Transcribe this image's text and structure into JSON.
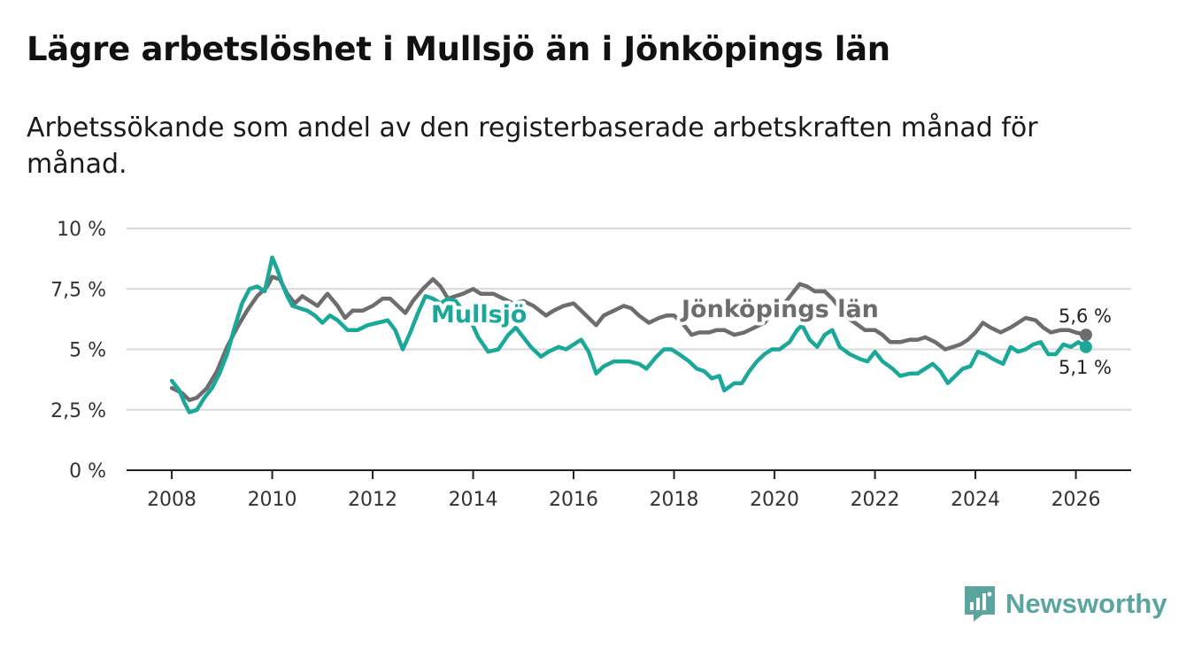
{
  "header": {
    "title": "Lägre arbetslöshet i Mullsjö än i Jönköpings län",
    "subtitle": "Arbetssökande som andel av den registerbaserade arbetskraften månad för månad."
  },
  "brand": {
    "name": "Newsworthy"
  },
  "colors": {
    "mullsjo": "#1aa89a",
    "lan": "#6d6d70",
    "grid": "#d9d9d9",
    "axis": "#222222",
    "brand": "#5aa5a0"
  },
  "chart_data": {
    "type": "line",
    "title": "Lägre arbetslöshet i Mullsjö än i Jönköpings län",
    "subtitle": "Arbetssökande som andel av den registerbaserade arbetskraften månad för månad.",
    "xlabel": "",
    "ylabel": "",
    "xlim": [
      2007.1,
      2027.1
    ],
    "ylim": [
      0,
      10
    ],
    "grid": true,
    "x_ticks": [
      {
        "value": 2008,
        "label": "2008"
      },
      {
        "value": 2010,
        "label": "2010"
      },
      {
        "value": 2012,
        "label": "2012"
      },
      {
        "value": 2014,
        "label": "2014"
      },
      {
        "value": 2016,
        "label": "2016"
      },
      {
        "value": 2018,
        "label": "2018"
      },
      {
        "value": 2020,
        "label": "2020"
      },
      {
        "value": 2022,
        "label": "2022"
      },
      {
        "value": 2024,
        "label": "2024"
      },
      {
        "value": 2026,
        "label": "2026"
      }
    ],
    "y_ticks": [
      {
        "value": 0,
        "label": "0 %"
      },
      {
        "value": 2.5,
        "label": "2,5 %"
      },
      {
        "value": 5,
        "label": "5 %"
      },
      {
        "value": 7.5,
        "label": "7,5 %"
      },
      {
        "value": 10,
        "label": "10 %"
      }
    ],
    "series": [
      {
        "name": "Jönköpings län",
        "end_label": "5,6 %",
        "points": [
          [
            2008.0,
            3.4
          ],
          [
            2008.2,
            3.2
          ],
          [
            2008.35,
            2.9
          ],
          [
            2008.5,
            3.0
          ],
          [
            2008.7,
            3.4
          ],
          [
            2008.9,
            4.1
          ],
          [
            2009.1,
            5.1
          ],
          [
            2009.3,
            5.9
          ],
          [
            2009.5,
            6.6
          ],
          [
            2009.7,
            7.2
          ],
          [
            2009.9,
            7.6
          ],
          [
            2010.0,
            8.0
          ],
          [
            2010.15,
            7.9
          ],
          [
            2010.3,
            7.3
          ],
          [
            2010.45,
            6.9
          ],
          [
            2010.6,
            7.2
          ],
          [
            2010.75,
            7.0
          ],
          [
            2010.9,
            6.8
          ],
          [
            2011.1,
            7.3
          ],
          [
            2011.3,
            6.8
          ],
          [
            2011.45,
            6.3
          ],
          [
            2011.6,
            6.6
          ],
          [
            2011.8,
            6.6
          ],
          [
            2012.0,
            6.8
          ],
          [
            2012.2,
            7.1
          ],
          [
            2012.35,
            7.1
          ],
          [
            2012.5,
            6.8
          ],
          [
            2012.65,
            6.5
          ],
          [
            2012.8,
            7.0
          ],
          [
            2013.0,
            7.5
          ],
          [
            2013.2,
            7.9
          ],
          [
            2013.35,
            7.6
          ],
          [
            2013.5,
            7.1
          ],
          [
            2013.65,
            7.2
          ],
          [
            2013.8,
            7.3
          ],
          [
            2014.0,
            7.5
          ],
          [
            2014.15,
            7.3
          ],
          [
            2014.4,
            7.3
          ],
          [
            2014.6,
            7.1
          ],
          [
            2014.8,
            6.9
          ],
          [
            2015.0,
            7.0
          ],
          [
            2015.2,
            6.8
          ],
          [
            2015.45,
            6.4
          ],
          [
            2015.6,
            6.6
          ],
          [
            2015.8,
            6.8
          ],
          [
            2016.0,
            6.9
          ],
          [
            2016.15,
            6.6
          ],
          [
            2016.3,
            6.3
          ],
          [
            2016.45,
            6.0
          ],
          [
            2016.6,
            6.4
          ],
          [
            2016.8,
            6.6
          ],
          [
            2017.0,
            6.8
          ],
          [
            2017.15,
            6.7
          ],
          [
            2017.3,
            6.4
          ],
          [
            2017.5,
            6.1
          ],
          [
            2017.7,
            6.3
          ],
          [
            2017.85,
            6.4
          ],
          [
            2018.0,
            6.4
          ],
          [
            2018.2,
            6.0
          ],
          [
            2018.35,
            5.6
          ],
          [
            2018.5,
            5.7
          ],
          [
            2018.7,
            5.7
          ],
          [
            2018.85,
            5.8
          ],
          [
            2019.0,
            5.8
          ],
          [
            2019.2,
            5.6
          ],
          [
            2019.4,
            5.7
          ],
          [
            2019.6,
            5.9
          ],
          [
            2019.8,
            6.1
          ],
          [
            2020.0,
            6.6
          ],
          [
            2020.2,
            6.9
          ],
          [
            2020.35,
            7.3
          ],
          [
            2020.5,
            7.7
          ],
          [
            2020.65,
            7.6
          ],
          [
            2020.8,
            7.4
          ],
          [
            2021.0,
            7.4
          ],
          [
            2021.15,
            7.1
          ],
          [
            2021.3,
            6.7
          ],
          [
            2021.45,
            6.3
          ],
          [
            2021.6,
            6.1
          ],
          [
            2021.8,
            5.8
          ],
          [
            2022.0,
            5.8
          ],
          [
            2022.15,
            5.6
          ],
          [
            2022.3,
            5.3
          ],
          [
            2022.5,
            5.3
          ],
          [
            2022.7,
            5.4
          ],
          [
            2022.85,
            5.4
          ],
          [
            2023.0,
            5.5
          ],
          [
            2023.2,
            5.3
          ],
          [
            2023.4,
            5.0
          ],
          [
            2023.55,
            5.1
          ],
          [
            2023.7,
            5.2
          ],
          [
            2023.85,
            5.4
          ],
          [
            2024.0,
            5.7
          ],
          [
            2024.15,
            6.1
          ],
          [
            2024.3,
            5.9
          ],
          [
            2024.5,
            5.7
          ],
          [
            2024.7,
            5.9
          ],
          [
            2024.85,
            6.1
          ],
          [
            2025.0,
            6.3
          ],
          [
            2025.2,
            6.2
          ],
          [
            2025.35,
            5.9
          ],
          [
            2025.5,
            5.7
          ],
          [
            2025.7,
            5.8
          ],
          [
            2025.85,
            5.8
          ],
          [
            2026.0,
            5.7
          ],
          [
            2026.2,
            5.6
          ]
        ]
      },
      {
        "name": "Mullsjö",
        "end_label": "5,1 %",
        "points": [
          [
            2008.0,
            3.7
          ],
          [
            2008.15,
            3.3
          ],
          [
            2008.25,
            2.8
          ],
          [
            2008.35,
            2.4
          ],
          [
            2008.5,
            2.5
          ],
          [
            2008.65,
            3.0
          ],
          [
            2008.8,
            3.4
          ],
          [
            2008.95,
            4.0
          ],
          [
            2009.1,
            4.8
          ],
          [
            2009.25,
            5.9
          ],
          [
            2009.4,
            6.9
          ],
          [
            2009.55,
            7.5
          ],
          [
            2009.7,
            7.6
          ],
          [
            2009.85,
            7.4
          ],
          [
            2010.0,
            8.8
          ],
          [
            2010.1,
            8.3
          ],
          [
            2010.2,
            7.7
          ],
          [
            2010.3,
            7.2
          ],
          [
            2010.4,
            6.8
          ],
          [
            2010.55,
            6.7
          ],
          [
            2010.7,
            6.6
          ],
          [
            2010.85,
            6.4
          ],
          [
            2011.0,
            6.1
          ],
          [
            2011.15,
            6.4
          ],
          [
            2011.3,
            6.2
          ],
          [
            2011.5,
            5.8
          ],
          [
            2011.7,
            5.8
          ],
          [
            2011.9,
            6.0
          ],
          [
            2012.1,
            6.1
          ],
          [
            2012.3,
            6.2
          ],
          [
            2012.45,
            5.8
          ],
          [
            2012.6,
            5.0
          ],
          [
            2012.75,
            5.7
          ],
          [
            2012.9,
            6.5
          ],
          [
            2013.05,
            7.2
          ],
          [
            2013.2,
            7.1
          ],
          [
            2013.35,
            6.9
          ],
          [
            2013.5,
            7.1
          ],
          [
            2013.65,
            7.0
          ],
          [
            2013.8,
            6.6
          ],
          [
            2013.95,
            6.2
          ],
          [
            2014.1,
            5.5
          ],
          [
            2014.3,
            4.9
          ],
          [
            2014.5,
            5.0
          ],
          [
            2014.7,
            5.6
          ],
          [
            2014.85,
            5.9
          ],
          [
            2015.0,
            5.5
          ],
          [
            2015.15,
            5.1
          ],
          [
            2015.35,
            4.7
          ],
          [
            2015.5,
            4.9
          ],
          [
            2015.7,
            5.1
          ],
          [
            2015.85,
            5.0
          ],
          [
            2016.0,
            5.2
          ],
          [
            2016.15,
            5.4
          ],
          [
            2016.3,
            4.9
          ],
          [
            2016.45,
            4.0
          ],
          [
            2016.6,
            4.3
          ],
          [
            2016.8,
            4.5
          ],
          [
            2016.95,
            4.5
          ],
          [
            2017.1,
            4.5
          ],
          [
            2017.3,
            4.4
          ],
          [
            2017.45,
            4.2
          ],
          [
            2017.65,
            4.7
          ],
          [
            2017.8,
            5.0
          ],
          [
            2017.95,
            5.0
          ],
          [
            2018.1,
            4.8
          ],
          [
            2018.3,
            4.5
          ],
          [
            2018.45,
            4.2
          ],
          [
            2018.6,
            4.1
          ],
          [
            2018.75,
            3.8
          ],
          [
            2018.9,
            3.9
          ],
          [
            2019.0,
            3.3
          ],
          [
            2019.2,
            3.6
          ],
          [
            2019.35,
            3.6
          ],
          [
            2019.5,
            4.1
          ],
          [
            2019.65,
            4.5
          ],
          [
            2019.8,
            4.8
          ],
          [
            2019.95,
            5.0
          ],
          [
            2020.1,
            5.0
          ],
          [
            2020.3,
            5.3
          ],
          [
            2020.45,
            5.8
          ],
          [
            2020.55,
            6.0
          ],
          [
            2020.7,
            5.4
          ],
          [
            2020.85,
            5.1
          ],
          [
            2021.0,
            5.6
          ],
          [
            2021.15,
            5.8
          ],
          [
            2021.3,
            5.1
          ],
          [
            2021.5,
            4.8
          ],
          [
            2021.7,
            4.6
          ],
          [
            2021.85,
            4.5
          ],
          [
            2022.0,
            4.9
          ],
          [
            2022.15,
            4.5
          ],
          [
            2022.35,
            4.2
          ],
          [
            2022.5,
            3.9
          ],
          [
            2022.7,
            4.0
          ],
          [
            2022.85,
            4.0
          ],
          [
            2023.0,
            4.2
          ],
          [
            2023.15,
            4.4
          ],
          [
            2023.3,
            4.1
          ],
          [
            2023.45,
            3.6
          ],
          [
            2023.6,
            3.9
          ],
          [
            2023.75,
            4.2
          ],
          [
            2023.9,
            4.3
          ],
          [
            2024.05,
            4.9
          ],
          [
            2024.2,
            4.8
          ],
          [
            2024.35,
            4.6
          ],
          [
            2024.55,
            4.4
          ],
          [
            2024.7,
            5.1
          ],
          [
            2024.85,
            4.9
          ],
          [
            2025.0,
            5.0
          ],
          [
            2025.15,
            5.2
          ],
          [
            2025.3,
            5.3
          ],
          [
            2025.45,
            4.8
          ],
          [
            2025.6,
            4.8
          ],
          [
            2025.75,
            5.2
          ],
          [
            2025.9,
            5.1
          ],
          [
            2026.05,
            5.3
          ],
          [
            2026.2,
            5.1
          ]
        ]
      }
    ]
  }
}
